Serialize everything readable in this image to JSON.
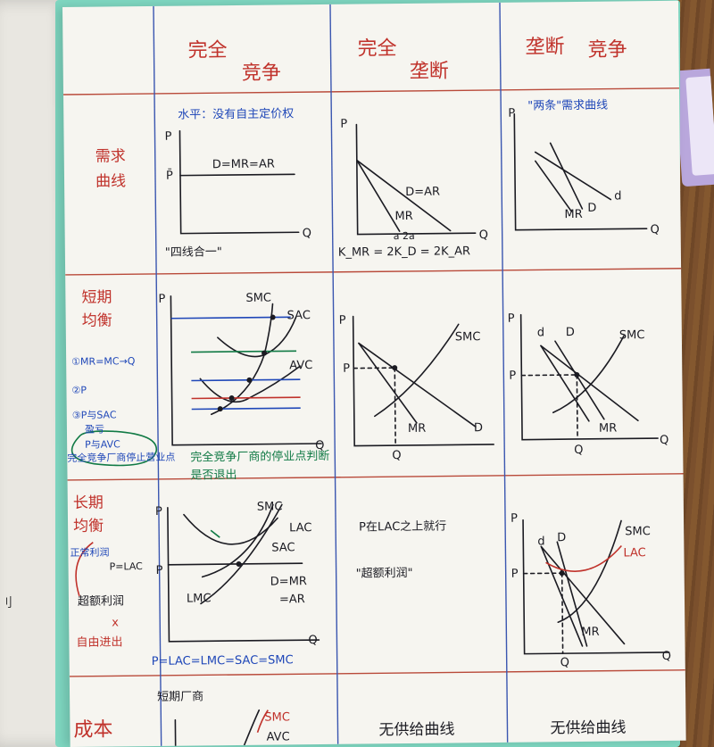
{
  "header": {
    "col1_part1": "完全",
    "col1_part2": "竞争",
    "col2_part1": "完全",
    "col2_part2": "垄断",
    "col3_part1": "垄断",
    "col3_part2": "竞争"
  },
  "rows": {
    "demand_line1": "需求",
    "demand_line2": "曲线",
    "short_line1": "短期",
    "short_line2": "均衡",
    "long_line1": "长期",
    "long_line2": "均衡",
    "cost_label": "成本"
  },
  "demand": {
    "pc_note": "水平：没有自主定价权",
    "pc_eq": "D=MR=AR",
    "pc_bottom": "\"四线合一\"",
    "mono_dar": "D=AR",
    "mono_mr": "MR",
    "mono_bottom": "K_MR = 2K_D = 2K_AR",
    "mono_ticks": "a      2a",
    "mc_note": "\"两条\"需求曲线",
    "mc_mr": "MR",
    "mc_D": "D",
    "mc_d": "d"
  },
  "short_run": {
    "cond1": "①MR=MC→Q",
    "cond2": "②P",
    "cond3": "③P与SAC",
    "cond3b": "盈亏",
    "cond4": "P与AVC",
    "cond4b": "完全竞争厂商停止营业点",
    "arrow_note": "完全竞争厂商的停业点判断",
    "arrow_note2": "是否退出",
    "pc_smc": "SMC",
    "pc_sac": "SAC",
    "pc_avc": "AVC",
    "mono_smc": "SMC",
    "mono_mr": "MR",
    "mono_d": "D",
    "mc_d": "d",
    "mc_D": "D",
    "mc_smc": "SMC",
    "mc_mr": "MR"
  },
  "long_run": {
    "normal_profit": "正常利润",
    "p_lac": "P=LAC",
    "excess_profit": "超额利润",
    "x_mark": "x",
    "free_entry": "自由进出",
    "pc_smc": "SMC",
    "pc_lac": "LAC",
    "pc_sal": "SAC",
    "pc_lmc": "LMC",
    "pc_dmr": "D=MR",
    "pc_ar": "=AR",
    "pc_bottom": "P=LAC=LMC=SAC=SMC",
    "mono_note1": "P在LAC之上就行",
    "mono_note2": "\"超额利润\"",
    "mc_d": "d",
    "mc_D": "D",
    "mc_smc": "SMC",
    "mc_lac": "LAC",
    "mc_mr": "MR"
  },
  "bottom": {
    "row_label": "成本",
    "pc_note": "短期厂商",
    "pc_smc": "SMC",
    "pc_avc": "AVC",
    "mono_note": "无供给曲线",
    "mc_note": "无供给曲线"
  },
  "axis": {
    "P": "P",
    "Q": "Q",
    "Pbar": "P̄"
  },
  "colors": {
    "grid_red": "#b94a3a",
    "grid_blue": "#3a56b0",
    "ink": "#1b1b22",
    "red": "#c0322b",
    "blue": "#1f47b8",
    "green": "#117a45"
  },
  "edge_mark": "刂"
}
